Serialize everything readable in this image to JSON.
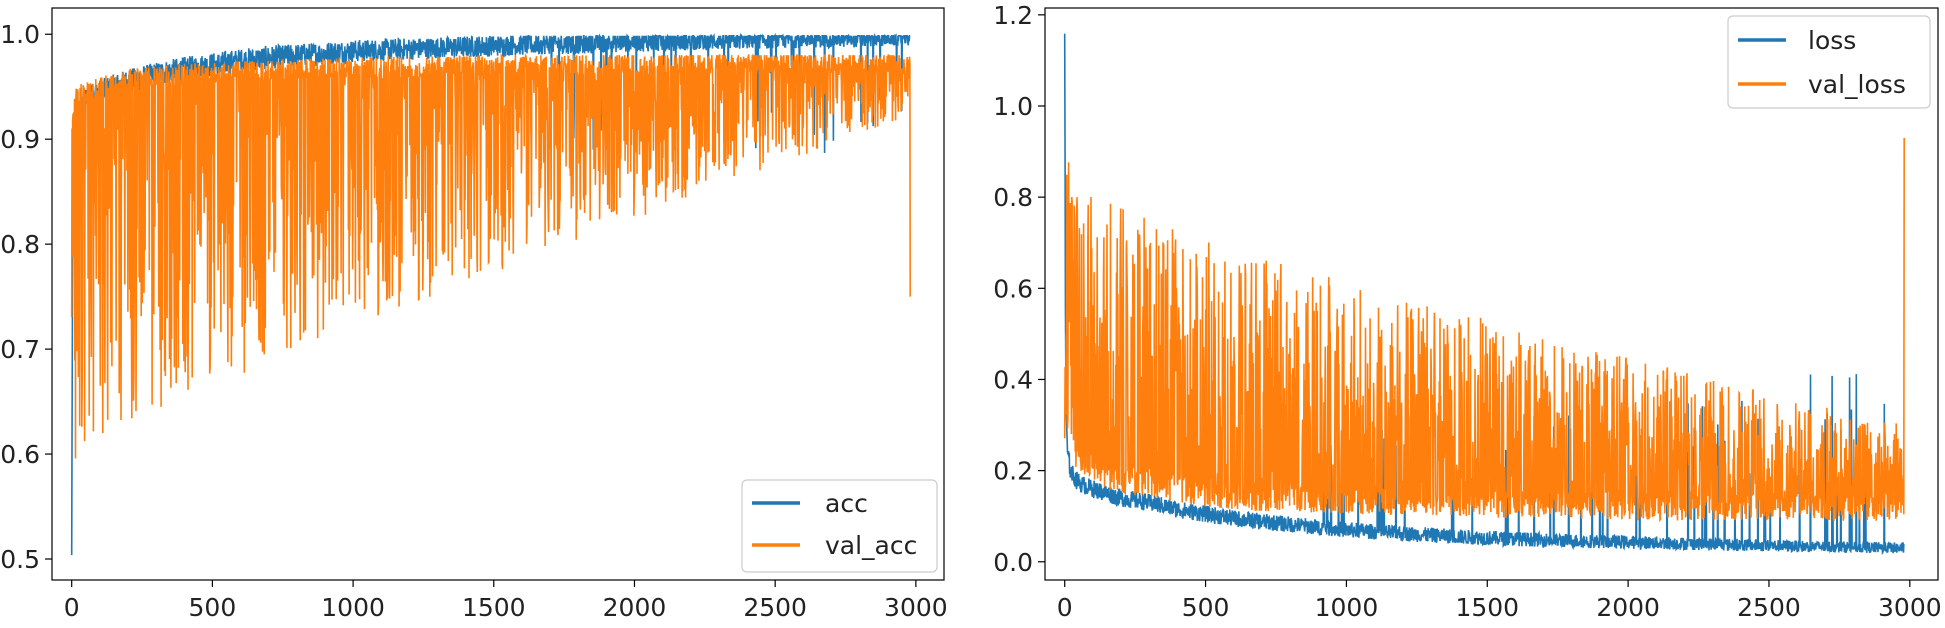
{
  "chart_data": [
    {
      "type": "line",
      "title": "",
      "xlabel": "",
      "ylabel": "",
      "xlim": [
        -70,
        3100
      ],
      "ylim": [
        0.48,
        1.025
      ],
      "x_ticks": [
        0,
        500,
        1000,
        1500,
        2000,
        2500,
        3000
      ],
      "x_tick_labels": [
        "0",
        "500",
        "1000",
        "1500",
        "2000",
        "2500",
        "3000"
      ],
      "y_ticks": [
        0.5,
        0.6,
        0.7,
        0.8,
        0.9,
        1.0
      ],
      "y_tick_labels": [
        "0.5",
        "0.6",
        "0.7",
        "0.8",
        "0.9",
        "1.0"
      ],
      "grid": false,
      "legend": {
        "position": "lower-right",
        "entries": [
          "acc",
          "val_acc"
        ]
      },
      "series": [
        {
          "name": "acc",
          "color": "#1f77b4",
          "x": [
            0,
            3,
            6,
            10,
            20,
            40,
            60,
            100,
            150,
            200,
            250,
            300,
            400,
            500,
            600,
            700,
            800,
            900,
            1000,
            1100,
            1200,
            1300,
            1400,
            1500,
            1600,
            1700,
            1800,
            1900,
            2000,
            2100,
            2200,
            2300,
            2400,
            2500,
            2600,
            2700,
            2800,
            2900,
            2980
          ],
          "values": [
            0.5,
            0.77,
            0.86,
            0.9,
            0.92,
            0.935,
            0.94,
            0.945,
            0.95,
            0.955,
            0.958,
            0.962,
            0.967,
            0.971,
            0.975,
            0.978,
            0.98,
            0.982,
            0.984,
            0.985,
            0.986,
            0.987,
            0.988,
            0.989,
            0.99,
            0.991,
            0.991,
            0.992,
            0.993,
            0.993,
            0.994,
            0.994,
            0.995,
            0.995,
            0.996,
            0.996,
            0.996,
            0.997,
            0.997
          ]
        },
        {
          "name": "val_acc",
          "color": "#ff7f0e",
          "x": [
            0,
            10,
            50,
            100,
            150,
            200,
            250,
            300,
            400,
            500,
            600,
            700,
            800,
            900,
            1000,
            1100,
            1200,
            1300,
            1400,
            1500,
            1600,
            1700,
            1800,
            1900,
            2000,
            2100,
            2200,
            2300,
            2400,
            2500,
            2600,
            2700,
            2800,
            2900,
            2980
          ],
          "values": [
            0.91,
            0.94,
            0.945,
            0.95,
            0.955,
            0.957,
            0.958,
            0.96,
            0.962,
            0.963,
            0.965,
            0.966,
            0.967,
            0.968,
            0.968,
            0.969,
            0.969,
            0.97,
            0.97,
            0.97,
            0.971,
            0.971,
            0.971,
            0.972,
            0.972,
            0.972,
            0.972,
            0.973,
            0.973,
            0.973,
            0.973,
            0.973,
            0.973,
            0.973,
            0.97
          ]
        }
      ]
    },
    {
      "type": "line",
      "title": "",
      "xlabel": "",
      "ylabel": "",
      "xlim": [
        -70,
        3100
      ],
      "ylim": [
        -0.04,
        1.215
      ],
      "x_ticks": [
        0,
        500,
        1000,
        1500,
        2000,
        2500,
        3000
      ],
      "x_tick_labels": [
        "0",
        "500",
        "1000",
        "1500",
        "2000",
        "2500",
        "3000"
      ],
      "y_ticks": [
        0.0,
        0.2,
        0.4,
        0.6,
        0.8,
        1.0,
        1.2
      ],
      "y_tick_labels": [
        "0.0",
        "0.2",
        "0.4",
        "0.6",
        "0.8",
        "1.0",
        "1.2"
      ],
      "grid": false,
      "legend": {
        "position": "upper-right",
        "entries": [
          "loss",
          "val_loss"
        ]
      },
      "series": [
        {
          "name": "loss",
          "color": "#1f77b4",
          "x": [
            0,
            3,
            6,
            10,
            20,
            40,
            60,
            100,
            150,
            200,
            300,
            400,
            500,
            600,
            700,
            800,
            900,
            1000,
            1200,
            1400,
            1600,
            1800,
            2000,
            2200,
            2400,
            2600,
            2800,
            2980
          ],
          "values": [
            1.16,
            0.45,
            0.3,
            0.24,
            0.2,
            0.18,
            0.17,
            0.16,
            0.15,
            0.14,
            0.13,
            0.115,
            0.105,
            0.095,
            0.088,
            0.082,
            0.076,
            0.07,
            0.062,
            0.055,
            0.05,
            0.046,
            0.043,
            0.04,
            0.037,
            0.034,
            0.032,
            0.03
          ]
        },
        {
          "name": "val_loss",
          "color": "#ff7f0e",
          "x": [
            0,
            50,
            100,
            200,
            300,
            400,
            500,
            600,
            700,
            800,
            1000,
            1200,
            1400,
            1600,
            1800,
            2000,
            2200,
            2400,
            2600,
            2800,
            2980
          ],
          "values": [
            0.3,
            0.22,
            0.2,
            0.18,
            0.17,
            0.16,
            0.15,
            0.145,
            0.14,
            0.14,
            0.135,
            0.13,
            0.13,
            0.125,
            0.125,
            0.12,
            0.12,
            0.12,
            0.12,
            0.12,
            0.12
          ]
        }
      ]
    }
  ]
}
